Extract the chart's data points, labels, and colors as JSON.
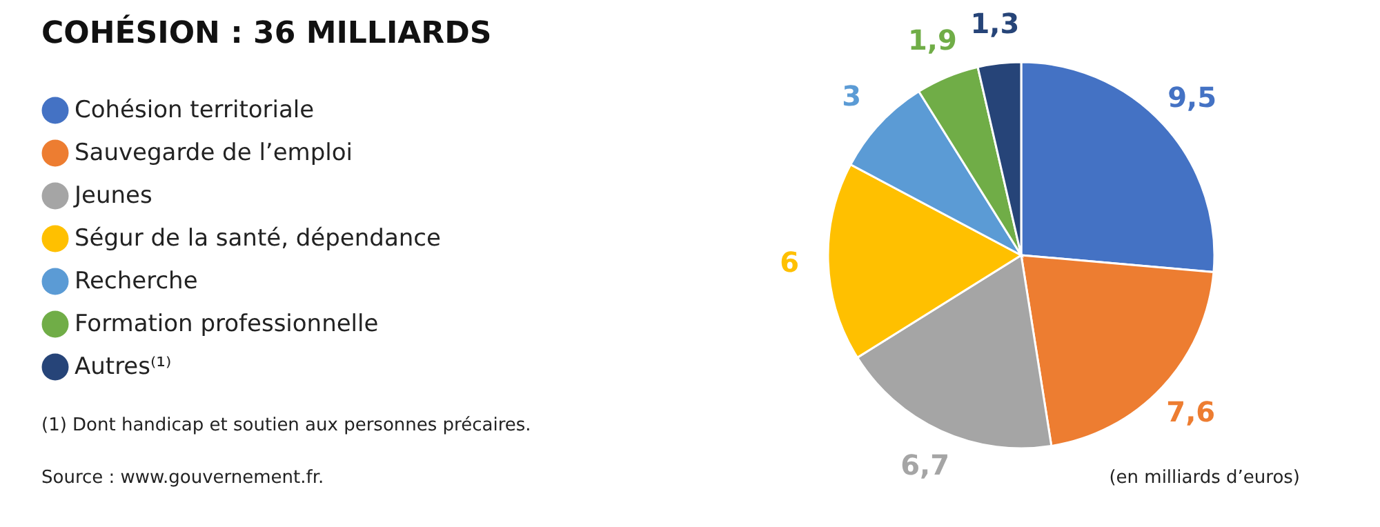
{
  "chart_data": {
    "type": "pie",
    "title": "COHÉSION : 36 MILLIARDS",
    "categories": [
      "Cohésion territoriale",
      "Sauvegarde de l’emploi",
      "Jeunes",
      "Ségur de la santé, dépendance",
      "Recherche",
      "Formation professionnelle",
      "Autres⁽¹⁾"
    ],
    "values": [
      9.5,
      7.6,
      6.7,
      6,
      3,
      1.9,
      1.3
    ],
    "value_labels": [
      "9,5",
      "7,6",
      "6,7",
      "6",
      "3",
      "1,9",
      "1,3"
    ],
    "colors": [
      "#4472c4",
      "#ed7d31",
      "#a5a5a5",
      "#ffc000",
      "#5b9bd5",
      "#70ad47",
      "#264478"
    ],
    "legend": "left",
    "annotations": [
      "(1) Dont handicap et soutien aux personnes précaires.",
      "Source : www.gouvernement.fr.",
      "(en milliards d’euros)"
    ]
  }
}
